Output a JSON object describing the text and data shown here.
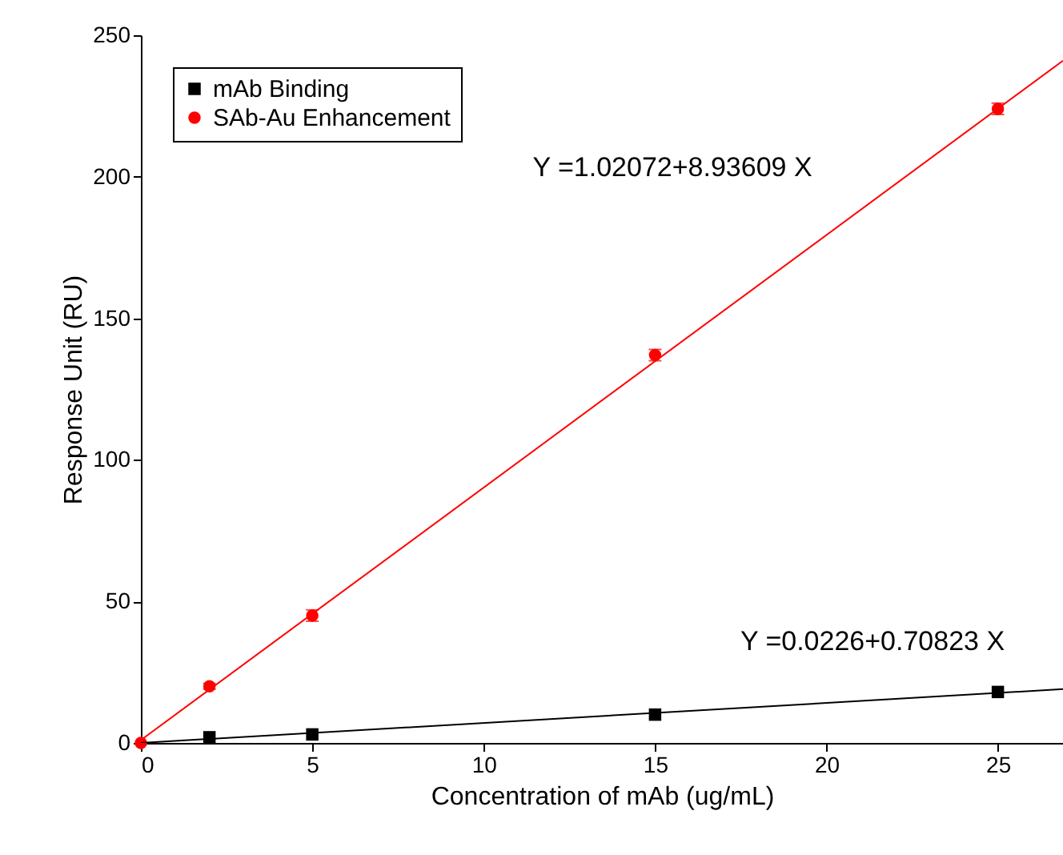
{
  "chart_data": {
    "type": "scatter",
    "xlabel": "Concentration of mAb (ug/mL)",
    "ylabel": "Response Unit (RU)",
    "xlim": [
      0,
      26.9
    ],
    "ylim": [
      0,
      250
    ],
    "xticks": [
      0,
      5,
      10,
      15,
      20,
      25
    ],
    "yticks": [
      0,
      50,
      100,
      150,
      200,
      250
    ],
    "legend": "top left",
    "series": [
      {
        "name": "mAb Binding",
        "color": "#000000",
        "marker": "square",
        "x": [
          2,
          5,
          15,
          25
        ],
        "values": [
          2,
          3,
          10,
          18
        ]
      },
      {
        "name": "SAb-Au Enhancement",
        "color": "#ff0000",
        "marker": "circle",
        "x": [
          0,
          2,
          5,
          15,
          25
        ],
        "values": [
          0,
          20,
          45,
          137,
          224
        ],
        "errors": [
          null,
          1,
          2,
          2,
          2
        ]
      },
      {
        "type": "line",
        "color": "#000000",
        "x": [
          0,
          26.9
        ],
        "values": [
          0,
          19
        ]
      },
      {
        "type": "line",
        "color": "#ff0000",
        "x": [
          0,
          26.9
        ],
        "values": [
          1,
          241
        ]
      }
    ],
    "annotations": [
      "Y =1.02072+8.93609 X",
      "Y =0.0226+0.70823 X"
    ]
  }
}
